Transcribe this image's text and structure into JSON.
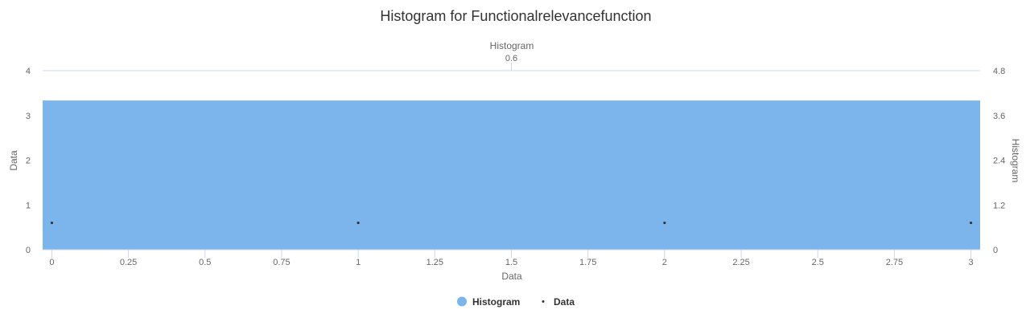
{
  "chart_data": {
    "type": "bar",
    "title": "Histogram for Functionalrelevancefunction",
    "xlabel": "Data",
    "ylabel": "Data",
    "y2label": "Histogram",
    "xlim": [
      -0.03,
      3.03
    ],
    "ylim": [
      0,
      4
    ],
    "y2lim": [
      0,
      4.8
    ],
    "x_ticks": [
      "0",
      "0.25",
      "0.5",
      "0.75",
      "1",
      "1.25",
      "1.5",
      "1.75",
      "2",
      "2.25",
      "2.5",
      "2.75",
      "3"
    ],
    "y_ticks": [
      "0",
      "1",
      "2",
      "3",
      "4"
    ],
    "y2_ticks": [
      "0",
      "1.2",
      "2.4",
      "3.6",
      "4.8"
    ],
    "top_axis": {
      "label": "Histogram",
      "ticks": [
        0.6
      ]
    },
    "series": [
      {
        "name": "Histogram",
        "kind": "area",
        "color": "#7cb5ec",
        "x": [
          -0.03,
          3.03
        ],
        "values": [
          4,
          4
        ],
        "axis": "y2"
      },
      {
        "name": "Data",
        "kind": "scatter",
        "color": "#333333",
        "x": [
          0,
          1,
          2,
          3
        ],
        "values": [
          0.6,
          0.6,
          0.6,
          0.6
        ],
        "axis": "y"
      }
    ],
    "legend": {
      "position": "bottom-center",
      "items": [
        "Histogram",
        "Data"
      ]
    }
  }
}
